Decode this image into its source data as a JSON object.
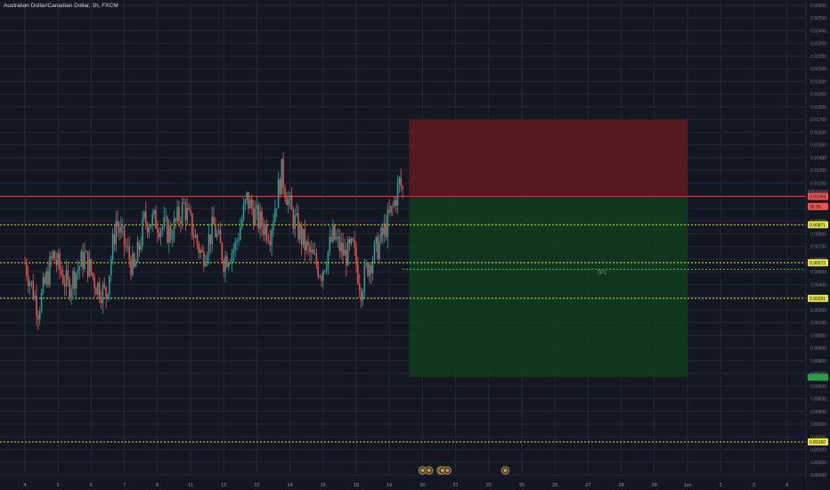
{
  "symbol": {
    "title": "Australian Dollar/Canadian Dollar, 1h, FXCM"
  },
  "colors": {
    "background": "#131722",
    "grid": "#232836",
    "up_candle": "#26a69a",
    "down_candle": "#ef5350",
    "risk_zone": "#5a1a22",
    "reward_zone": "#113a1e",
    "level_line": "#e6e23a",
    "entry_line": "#b2424a"
  },
  "chart_data": {
    "type": "candlestick",
    "title": "Australian Dollar/Canadian Dollar, 1h, FXCM",
    "y_axis": {
      "min": 0.889,
      "max": 0.926,
      "tick_labels": [
        "0.92600",
        "0.92500",
        "0.92400",
        "0.92300",
        "0.92200",
        "0.92100",
        "0.92000",
        "0.91900",
        "0.91800",
        "0.91700",
        "0.91600",
        "0.91500",
        "0.91400",
        "0.91300",
        "0.91200",
        "0.91100",
        "0.91000",
        "0.90900",
        "0.90800",
        "0.90700",
        "0.90600",
        "0.90500",
        "0.90400",
        "0.90300",
        "0.90200",
        "0.90100",
        "0.90000",
        "0.89900",
        "0.89800",
        "0.89700",
        "0.89600",
        "0.89500",
        "0.89400",
        "0.89300",
        "0.89200",
        "0.89100",
        "0.89000",
        "0.88900"
      ]
    },
    "x_axis": {
      "tick_labels": [
        "4",
        "5",
        "6",
        "7",
        "8",
        "11",
        "12",
        "13",
        "14",
        "15",
        "18",
        "19",
        "20",
        "21",
        "22",
        "25",
        "26",
        "27",
        "28",
        "29",
        "Jun",
        "2",
        "3",
        "4"
      ]
    },
    "candles_end_index": 11.45,
    "candles_segment_pivots": [
      {
        "x": 0.0,
        "y": 0.9057
      },
      {
        "x": 0.4,
        "y": 0.9021
      },
      {
        "x": 0.85,
        "y": 0.9063
      },
      {
        "x": 1.3,
        "y": 0.9038
      },
      {
        "x": 1.8,
        "y": 0.9062
      },
      {
        "x": 2.15,
        "y": 0.904
      },
      {
        "x": 2.45,
        "y": 0.9032
      },
      {
        "x": 2.75,
        "y": 0.909
      },
      {
        "x": 3.3,
        "y": 0.905
      },
      {
        "x": 3.6,
        "y": 0.909
      },
      {
        "x": 3.95,
        "y": 0.909
      },
      {
        "x": 4.4,
        "y": 0.908
      },
      {
        "x": 4.8,
        "y": 0.9102
      },
      {
        "x": 5.35,
        "y": 0.9062
      },
      {
        "x": 5.7,
        "y": 0.9086
      },
      {
        "x": 6.0,
        "y": 0.906
      },
      {
        "x": 6.35,
        "y": 0.907
      },
      {
        "x": 6.7,
        "y": 0.9107
      },
      {
        "x": 7.05,
        "y": 0.909
      },
      {
        "x": 7.4,
        "y": 0.9082
      },
      {
        "x": 7.75,
        "y": 0.9128
      },
      {
        "x": 8.05,
        "y": 0.9095
      },
      {
        "x": 8.5,
        "y": 0.9068
      },
      {
        "x": 8.95,
        "y": 0.905
      },
      {
        "x": 9.3,
        "y": 0.9078
      },
      {
        "x": 9.65,
        "y": 0.9063
      },
      {
        "x": 9.9,
        "y": 0.9068
      },
      {
        "x": 10.15,
        "y": 0.9038
      },
      {
        "x": 10.35,
        "y": 0.9055
      },
      {
        "x": 10.7,
        "y": 0.9072
      },
      {
        "x": 11.1,
        "y": 0.91
      },
      {
        "x": 11.3,
        "y": 0.912
      },
      {
        "x": 11.45,
        "y": 0.9111
      }
    ],
    "trade_setup": {
      "entry": 0.91094,
      "stop": 0.917,
      "target": 0.8967,
      "target_label": "TP1",
      "start_index": 11.6,
      "end_index": 20.0
    },
    "price_labels": [
      {
        "text": "0.91118",
        "bg": "#3a3f4b",
        "price": 0.91118
      },
      {
        "text": "0.91094",
        "bg": "#ef5350",
        "price": 0.91094
      },
      {
        "text": "26:35",
        "bg": "#ef5350",
        "price": 0.91015
      },
      {
        "text": "0.90871",
        "bg": "#e6e23a",
        "price": 0.90871
      },
      {
        "text": "0.90572",
        "bg": "#e6e23a",
        "price": 0.90572
      },
      {
        "text": "0.90291",
        "bg": "#e6e23a",
        "price": 0.90291
      },
      {
        "text": "0.89160",
        "bg": "#e6e23a",
        "price": 0.8916
      }
    ],
    "hlines": [
      {
        "price": 0.90871,
        "style": "dashed",
        "color": "#e6e23a"
      },
      {
        "price": 0.90572,
        "style": "dashed",
        "color": "#e6e23a"
      },
      {
        "price": 0.90291,
        "style": "dashed",
        "color": "#e6e23a"
      },
      {
        "price": 0.8916,
        "style": "dashed",
        "color": "#e6e23a"
      },
      {
        "price": 0.91094,
        "style": "solid",
        "color": "#b2424a"
      }
    ],
    "event_markers_days": [
      12.0,
      12.2,
      12.55,
      12.6,
      12.75,
      14.5
    ]
  }
}
